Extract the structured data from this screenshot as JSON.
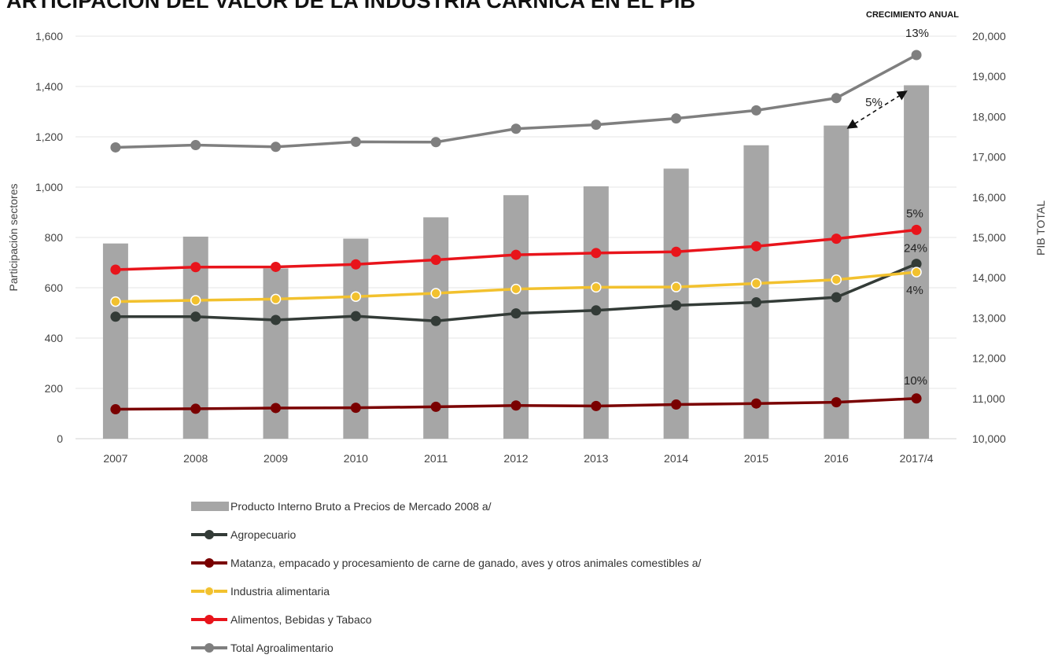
{
  "title": "ARTICIPACIÓN DEL VALOR DE LA INDUSTRIA CÁRNICA EN EL PIB",
  "chart_data": {
    "type": "bar+line",
    "categories": [
      "2007",
      "2008",
      "2009",
      "2010",
      "2011",
      "2012",
      "2013",
      "2014",
      "2015",
      "2016",
      "2017/4"
    ],
    "ylabel_left": "Participación sectores",
    "ylabel_right": "PIB TOTAL",
    "ylim_left": [
      0,
      1600
    ],
    "ylim_right": [
      10000,
      20000
    ],
    "yticks_left": [
      "0",
      "200",
      "400",
      "600",
      "800",
      "1,000",
      "1,200",
      "1,400",
      "1,600"
    ],
    "yticks_right": [
      "10,000",
      "11,000",
      "12,000",
      "13,000",
      "14,000",
      "15,000",
      "16,000",
      "17,000",
      "18,000",
      "19,000",
      "20,000"
    ],
    "grid": true,
    "legend_position": "bottom",
    "bars": {
      "name": "Producto Interno Bruto a Precios de Mercado 2008 a/",
      "axis": "right",
      "color": "#a6a6a6",
      "values": [
        14850,
        15020,
        14230,
        14970,
        15500,
        16050,
        16270,
        16710,
        17290,
        17780,
        18780
      ]
    },
    "series": [
      {
        "name": "Agropecuario",
        "color": "#333b37",
        "values": [
          485,
          485,
          472,
          487,
          468,
          498,
          510,
          530,
          542,
          562,
          695
        ]
      },
      {
        "name": "Matanza, empacado y procesamiento de carne de ganado, aves y otros animales comestibles a/",
        "color": "#7a0000",
        "values": [
          117,
          119,
          122,
          123,
          127,
          132,
          130,
          136,
          140,
          145,
          160
        ]
      },
      {
        "name": "Industria alimentaria",
        "color": "#f2c12e",
        "values": [
          545,
          550,
          555,
          565,
          578,
          595,
          602,
          603,
          617,
          632,
          662
        ]
      },
      {
        "name": "Alimentos, Bebidas y Tabaco",
        "color": "#e8141b",
        "values": [
          672,
          682,
          683,
          693,
          711,
          731,
          738,
          743,
          765,
          795,
          830
        ]
      },
      {
        "name": "Total Agroalimentario",
        "color": "#7f7f7f",
        "values": [
          1158,
          1167,
          1160,
          1180,
          1179,
          1232,
          1248,
          1273,
          1305,
          1354,
          1525
        ]
      }
    ],
    "annotations": {
      "header": "CRECIMIENTO ANUAL",
      "total": "13%",
      "gap": "5%",
      "alimentos": "5%",
      "agropecuario": "24%",
      "industria": "4%",
      "matanza": "10%"
    }
  }
}
